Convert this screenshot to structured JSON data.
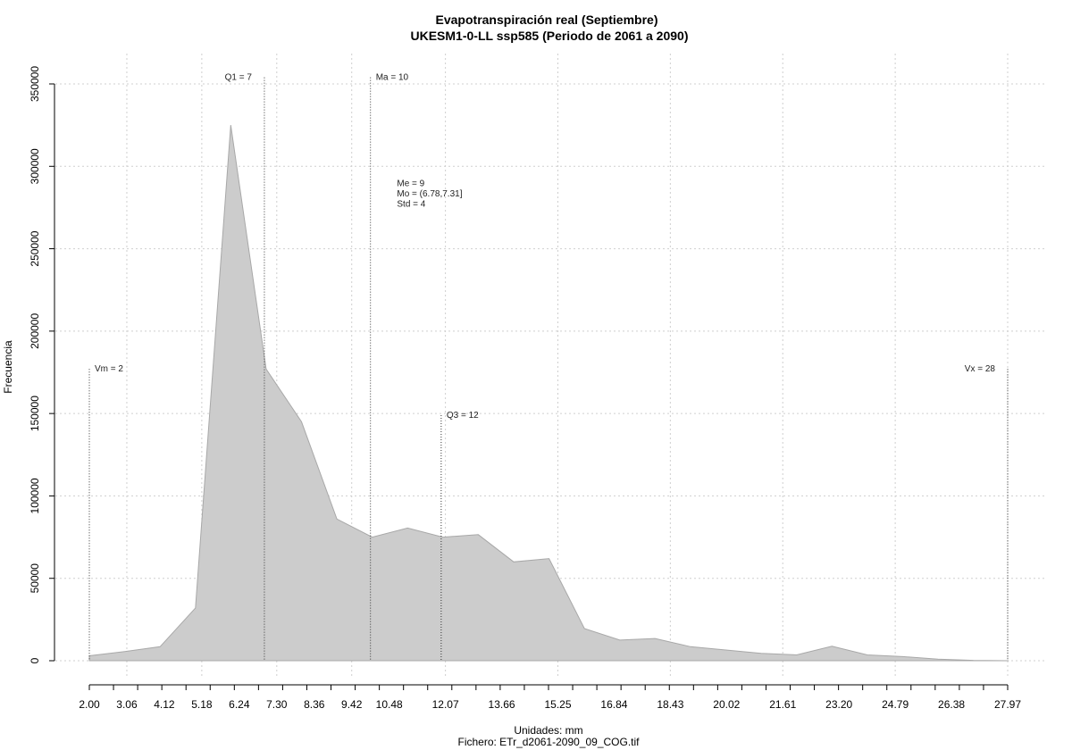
{
  "chart_data": {
    "type": "area",
    "title": "Evapotranspiración real (Septiembre)",
    "subtitle": "UKESM1-0-LL ssp585 (Periodo de 2061 a 2090)",
    "xlabel": "Unidades: mm",
    "ylabel": "Frecuencia",
    "footer": "Fichero: ETr_d2061-2090_09_COG.tif",
    "xlim": [
      2.0,
      27.97
    ],
    "ylim": [
      0,
      350000
    ],
    "grid": true,
    "x_tick_labels": [
      "2.00",
      "3.06",
      "4.12",
      "5.18",
      "6.24",
      "7.30",
      "8.36",
      "9.42",
      "10.48",
      "12.07",
      "13.66",
      "15.25",
      "16.84",
      "18.43",
      "20.02",
      "21.61",
      "23.20",
      "24.79",
      "26.38",
      "27.97"
    ],
    "x_tick_values": [
      2.0,
      3.06,
      4.12,
      5.18,
      6.24,
      7.3,
      8.36,
      9.42,
      10.48,
      12.07,
      13.66,
      15.25,
      16.84,
      18.43,
      20.02,
      21.61,
      23.2,
      24.79,
      26.38,
      27.97
    ],
    "y_tick_labels": [
      "0",
      "50000",
      "100000",
      "150000",
      "200000",
      "250000",
      "300000",
      "350000"
    ],
    "y_tick_values": [
      0,
      50000,
      100000,
      150000,
      200000,
      250000,
      300000,
      350000
    ],
    "series": [
      {
        "x": [
          2.0,
          3.0,
          4.0,
          5.0,
          6.0,
          7.0,
          8.0,
          9.0,
          10.0,
          11.0,
          12.0,
          13.0,
          14.0,
          15.0,
          16.0,
          17.0,
          18.0,
          19.0,
          20.0,
          21.0,
          22.0,
          23.0,
          24.0,
          25.0,
          26.0,
          27.0,
          28.0
        ],
        "values": [
          3000,
          5500,
          8500,
          32000,
          325000,
          177000,
          145000,
          86000,
          75000,
          80500,
          75000,
          76500,
          60000,
          62000,
          19500,
          12500,
          13500,
          8500,
          6500,
          4500,
          3500,
          8800,
          3500,
          2500,
          1000,
          200,
          0
        ],
        "color": "#cccccc",
        "stroke": "#a8a8a8"
      }
    ],
    "annotations": [
      {
        "label": "Vm = 2",
        "x": 2.0,
        "line_top": 177000,
        "text_y": 175500,
        "anchor": "start"
      },
      {
        "label": "Q1 = 7",
        "x": 6.95,
        "line_top": 354000,
        "text_y": 352500,
        "anchor": "end"
      },
      {
        "label": "Ma = 10",
        "x": 9.95,
        "line_top": 354000,
        "text_y": 352500,
        "anchor": "start"
      },
      {
        "label": "Q3 = 12",
        "x": 11.95,
        "line_top": 149000,
        "text_y": 147500,
        "anchor": "start"
      },
      {
        "label": "Vx = 28",
        "x": 27.97,
        "line_top": 177000,
        "text_y": 175500,
        "anchor": "end"
      }
    ],
    "stats_box": {
      "lines": [
        "Me = 9",
        "Mo = (6.78,7.31]",
        "Std = 4"
      ],
      "x": 10.7,
      "y_top": 288000
    }
  }
}
